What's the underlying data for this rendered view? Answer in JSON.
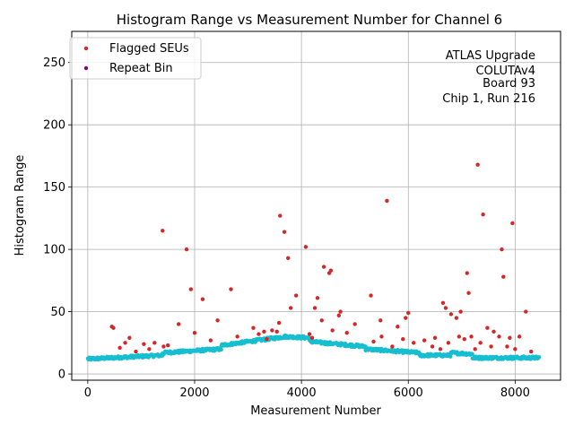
{
  "chart_data": {
    "type": "scatter",
    "title": "Histogram Range vs Measurement Number for Channel 6",
    "xlabel": "Measurement Number",
    "ylabel": "Histogram Range",
    "xlim": [
      -300,
      8850
    ],
    "ylim": [
      -5,
      275
    ],
    "xticks": [
      0,
      2000,
      4000,
      6000,
      8000
    ],
    "yticks": [
      0,
      50,
      100,
      150,
      200,
      250
    ],
    "grid": true,
    "legend_position": "top-left",
    "legend": [
      {
        "label": "Flagged SEUs",
        "color": "#d62728"
      },
      {
        "label": "Repeat Bin",
        "color": "#800080"
      }
    ],
    "annotation": [
      "ATLAS Upgrade",
      "COLUTAv4",
      "Board 93",
      "Chip 1, Run 216"
    ],
    "series": [
      {
        "name": "Baseline",
        "color": "#17becf",
        "segments": [
          {
            "x": [
              0,
              1400
            ],
            "y": [
              12,
              15
            ]
          },
          {
            "x": [
              1400,
              2500
            ],
            "y": [
              17,
              20
            ]
          },
          {
            "x": [
              2500,
              3700
            ],
            "y": [
              23,
              30
            ]
          },
          {
            "x": [
              3700,
              4150
            ],
            "y": [
              30,
              29
            ]
          },
          {
            "x": [
              4150,
              5200
            ],
            "y": [
              26,
              22
            ]
          },
          {
            "x": [
              5200,
              6200
            ],
            "y": [
              20,
              17
            ]
          },
          {
            "x": [
              6200,
              6800
            ],
            "y": [
              15,
              15
            ]
          },
          {
            "x": [
              6800,
              7200
            ],
            "y": [
              17,
              16
            ]
          },
          {
            "x": [
              7200,
              8450
            ],
            "y": [
              13,
              13
            ]
          }
        ]
      },
      {
        "name": "Flagged SEUs",
        "color": "#d62728",
        "x": [
          450,
          480,
          700,
          780,
          1050,
          1400,
          1420,
          1500,
          1700,
          1850,
          1930,
          2000,
          2150,
          2430,
          2680,
          3100,
          3300,
          3450,
          3540,
          3580,
          3600,
          3680,
          3750,
          3800,
          3900,
          4080,
          4250,
          4300,
          4380,
          4420,
          4520,
          4550,
          4580,
          4700,
          4730,
          5000,
          5300,
          5480,
          5600,
          5800,
          5950,
          6000,
          6500,
          6650,
          6700,
          6800,
          6900,
          6980,
          7100,
          7130,
          7300,
          7400,
          7480,
          7600,
          7750,
          7780,
          7900,
          7950,
          8080,
          8200,
          600,
          900,
          1150,
          1250,
          2300,
          2800,
          3200,
          3350,
          4150,
          4200,
          4850,
          5350,
          5500,
          5700,
          5900,
          6100,
          6300,
          6450,
          6600,
          6750,
          6950,
          7050,
          7180,
          7250,
          7350,
          7550,
          7700,
          7850,
          8000,
          8300
        ],
        "y": [
          38,
          37,
          25,
          29,
          24,
          115,
          22,
          23,
          40,
          100,
          68,
          33,
          60,
          43,
          68,
          37,
          34,
          35,
          34,
          41,
          127,
          114,
          93,
          53,
          63,
          102,
          53,
          61,
          43,
          86,
          81,
          83,
          35,
          47,
          50,
          40,
          63,
          43,
          139,
          38,
          45,
          49,
          29,
          57,
          53,
          48,
          45,
          50,
          81,
          65,
          168,
          128,
          37,
          34,
          100,
          78,
          29,
          121,
          30,
          50,
          21,
          18,
          20,
          25,
          27,
          30,
          32,
          28,
          32,
          29,
          33,
          26,
          30,
          22,
          28,
          25,
          27,
          22,
          20,
          25,
          30,
          28,
          30,
          20,
          25,
          22,
          30,
          22,
          20,
          18
        ]
      },
      {
        "name": "Repeat Bin",
        "color": "#800080",
        "x": [],
        "y": []
      }
    ]
  }
}
